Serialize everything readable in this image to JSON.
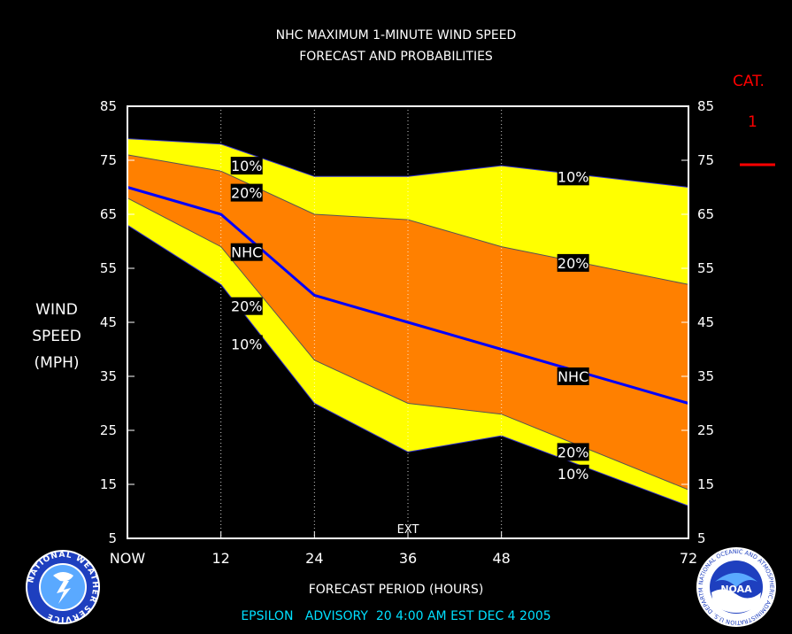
{
  "header": {
    "title_line1": "NHC MAXIMUM 1-MINUTE WIND SPEED",
    "title_line2": "FORECAST AND PROBABILITIES"
  },
  "category": {
    "label": "CAT.",
    "value": "1",
    "color": "#ff0000"
  },
  "footer": {
    "xlabel": "FORECAST PERIOD (HOURS)",
    "storm": "EPSILON",
    "advisory": "ADVISORY",
    "advisory_number": "20",
    "time": "4:00 AM EST DEC 4 2005"
  },
  "logos": {
    "left": {
      "text": "NATIONAL WEATHER SERVICE",
      "icon": "nws-logo-icon"
    },
    "right": {
      "text": "NATIONAL OCEANIC AND ATMOSPHERIC ADMINISTRATION U.S. DEPARTMENT OF COMMERCE",
      "center": "NOAA",
      "icon": "noaa-logo-icon"
    }
  },
  "colors": {
    "band_10": "#ffff00",
    "band_20": "#ff8000",
    "nhc_line": "#0000ff",
    "frame": "#ffffff",
    "category_line": "#ff0000"
  },
  "chart_data": {
    "type": "area",
    "title": "NHC MAXIMUM 1-MINUTE WIND SPEED FORECAST AND PROBABILITIES",
    "xlabel": "FORECAST PERIOD (HOURS)",
    "ylabel": [
      "WIND",
      "SPEED",
      "(MPH)"
    ],
    "xlim": [
      0,
      72
    ],
    "ylim": [
      5,
      85
    ],
    "x_ticks": [
      0,
      12,
      24,
      36,
      48,
      72
    ],
    "x_tick_labels": [
      "NOW",
      "12",
      "24",
      "36",
      "48",
      "72"
    ],
    "y_ticks": [
      5,
      15,
      25,
      35,
      45,
      55,
      65,
      75,
      85
    ],
    "extended_marker": {
      "x": 36,
      "label": "EXT"
    },
    "category_marker": {
      "label": "CAT.",
      "value": "1",
      "y": 74
    },
    "x": [
      0,
      12,
      24,
      36,
      48,
      72
    ],
    "series": [
      {
        "name": "10%",
        "role": "upper_10",
        "values": [
          79,
          78,
          72,
          72,
          74,
          70
        ]
      },
      {
        "name": "20%",
        "role": "upper_20",
        "values": [
          76,
          73,
          65,
          64,
          59,
          52
        ]
      },
      {
        "name": "NHC",
        "role": "nhc",
        "values": [
          70,
          65,
          50,
          45,
          40,
          30
        ]
      },
      {
        "name": "20%",
        "role": "lower_20",
        "values": [
          68,
          59,
          38,
          30,
          28,
          14
        ]
      },
      {
        "name": "10%",
        "role": "lower_10",
        "values": [
          63,
          52,
          30,
          21,
          24,
          11
        ]
      }
    ],
    "series_labels": [
      {
        "text": "10%",
        "x": 15.3,
        "y": 74
      },
      {
        "text": "20%",
        "x": 15.3,
        "y": 69
      },
      {
        "text": "NHC",
        "x": 15.3,
        "y": 58
      },
      {
        "text": "20%",
        "x": 15.3,
        "y": 48
      },
      {
        "text": "10%",
        "x": 15.3,
        "y": 41
      },
      {
        "text": "10%",
        "x": 57.2,
        "y": 72
      },
      {
        "text": "20%",
        "x": 57.2,
        "y": 56
      },
      {
        "text": "NHC",
        "x": 57.2,
        "y": 35
      },
      {
        "text": "20%",
        "x": 57.2,
        "y": 21
      },
      {
        "text": "10%",
        "x": 57.2,
        "y": 17
      }
    ]
  }
}
